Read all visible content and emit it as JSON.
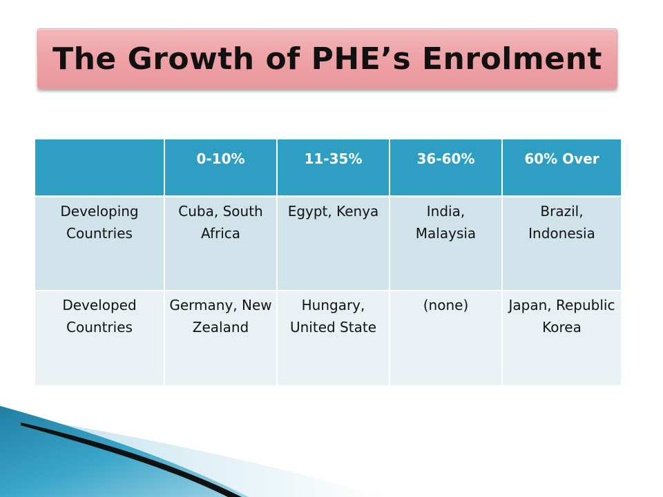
{
  "title": "The Growth of PHE’s Enrolment",
  "table": {
    "headers": [
      "",
      "0-10%",
      "11-35%",
      "36-60%",
      "60% Over"
    ],
    "rows": [
      {
        "label": "Developing Countries",
        "cells": [
          "Cuba, South Africa",
          "Egypt, Kenya",
          "India, Malaysia",
          "Brazil, Indonesia"
        ]
      },
      {
        "label": "Developed Countries",
        "cells": [
          "Germany, New Zealand",
          "Hungary, United State",
          "(none)",
          "Japan, Republic Korea"
        ]
      }
    ]
  },
  "colors": {
    "title_fill": "#eea3a7",
    "header_fill": "#2e9fc3",
    "row_dark": "#d0e3ea",
    "row_light": "#e9f1f4",
    "deco_teal": "#2a8fb0"
  }
}
